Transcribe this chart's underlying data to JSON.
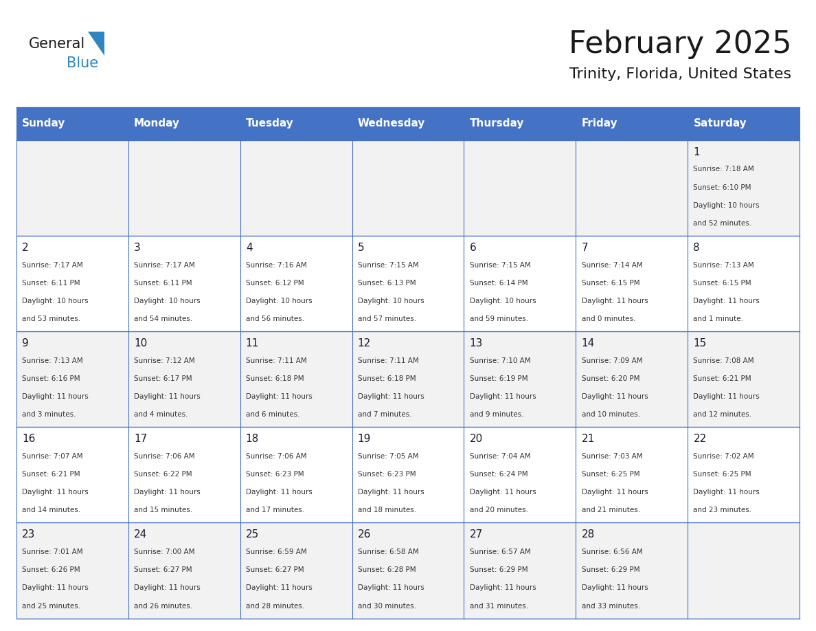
{
  "title": "February 2025",
  "subtitle": "Trinity, Florida, United States",
  "header_bg": "#4472C4",
  "header_text_color": "#FFFFFF",
  "cell_bg_odd": "#F2F2F2",
  "cell_bg_even": "#FFFFFF",
  "cell_text_color": "#333333",
  "day_num_color": "#1A1A2E",
  "grid_line_color": "#4472C4",
  "days_of_week": [
    "Sunday",
    "Monday",
    "Tuesday",
    "Wednesday",
    "Thursday",
    "Friday",
    "Saturday"
  ],
  "weeks": [
    [
      null,
      null,
      null,
      null,
      null,
      null,
      1
    ],
    [
      2,
      3,
      4,
      5,
      6,
      7,
      8
    ],
    [
      9,
      10,
      11,
      12,
      13,
      14,
      15
    ],
    [
      16,
      17,
      18,
      19,
      20,
      21,
      22
    ],
    [
      23,
      24,
      25,
      26,
      27,
      28,
      null
    ]
  ],
  "cell_data": {
    "1": {
      "sunrise": "7:18 AM",
      "sunset": "6:10 PM",
      "daylight": "10 hours and 52 minutes."
    },
    "2": {
      "sunrise": "7:17 AM",
      "sunset": "6:11 PM",
      "daylight": "10 hours and 53 minutes."
    },
    "3": {
      "sunrise": "7:17 AM",
      "sunset": "6:11 PM",
      "daylight": "10 hours and 54 minutes."
    },
    "4": {
      "sunrise": "7:16 AM",
      "sunset": "6:12 PM",
      "daylight": "10 hours and 56 minutes."
    },
    "5": {
      "sunrise": "7:15 AM",
      "sunset": "6:13 PM",
      "daylight": "10 hours and 57 minutes."
    },
    "6": {
      "sunrise": "7:15 AM",
      "sunset": "6:14 PM",
      "daylight": "10 hours and 59 minutes."
    },
    "7": {
      "sunrise": "7:14 AM",
      "sunset": "6:15 PM",
      "daylight": "11 hours and 0 minutes."
    },
    "8": {
      "sunrise": "7:13 AM",
      "sunset": "6:15 PM",
      "daylight": "11 hours and 1 minute."
    },
    "9": {
      "sunrise": "7:13 AM",
      "sunset": "6:16 PM",
      "daylight": "11 hours and 3 minutes."
    },
    "10": {
      "sunrise": "7:12 AM",
      "sunset": "6:17 PM",
      "daylight": "11 hours and 4 minutes."
    },
    "11": {
      "sunrise": "7:11 AM",
      "sunset": "6:18 PM",
      "daylight": "11 hours and 6 minutes."
    },
    "12": {
      "sunrise": "7:11 AM",
      "sunset": "6:18 PM",
      "daylight": "11 hours and 7 minutes."
    },
    "13": {
      "sunrise": "7:10 AM",
      "sunset": "6:19 PM",
      "daylight": "11 hours and 9 minutes."
    },
    "14": {
      "sunrise": "7:09 AM",
      "sunset": "6:20 PM",
      "daylight": "11 hours and 10 minutes."
    },
    "15": {
      "sunrise": "7:08 AM",
      "sunset": "6:21 PM",
      "daylight": "11 hours and 12 minutes."
    },
    "16": {
      "sunrise": "7:07 AM",
      "sunset": "6:21 PM",
      "daylight": "11 hours and 14 minutes."
    },
    "17": {
      "sunrise": "7:06 AM",
      "sunset": "6:22 PM",
      "daylight": "11 hours and 15 minutes."
    },
    "18": {
      "sunrise": "7:06 AM",
      "sunset": "6:23 PM",
      "daylight": "11 hours and 17 minutes."
    },
    "19": {
      "sunrise": "7:05 AM",
      "sunset": "6:23 PM",
      "daylight": "11 hours and 18 minutes."
    },
    "20": {
      "sunrise": "7:04 AM",
      "sunset": "6:24 PM",
      "daylight": "11 hours and 20 minutes."
    },
    "21": {
      "sunrise": "7:03 AM",
      "sunset": "6:25 PM",
      "daylight": "11 hours and 21 minutes."
    },
    "22": {
      "sunrise": "7:02 AM",
      "sunset": "6:25 PM",
      "daylight": "11 hours and 23 minutes."
    },
    "23": {
      "sunrise": "7:01 AM",
      "sunset": "6:26 PM",
      "daylight": "11 hours and 25 minutes."
    },
    "24": {
      "sunrise": "7:00 AM",
      "sunset": "6:27 PM",
      "daylight": "11 hours and 26 minutes."
    },
    "25": {
      "sunrise": "6:59 AM",
      "sunset": "6:27 PM",
      "daylight": "11 hours and 28 minutes."
    },
    "26": {
      "sunrise": "6:58 AM",
      "sunset": "6:28 PM",
      "daylight": "11 hours and 30 minutes."
    },
    "27": {
      "sunrise": "6:57 AM",
      "sunset": "6:29 PM",
      "daylight": "11 hours and 31 minutes."
    },
    "28": {
      "sunrise": "6:56 AM",
      "sunset": "6:29 PM",
      "daylight": "11 hours and 33 minutes."
    }
  },
  "logo_general_color": "#1A1A1A",
  "logo_blue_color": "#2E86C1",
  "logo_triangle_color": "#2E86C1"
}
